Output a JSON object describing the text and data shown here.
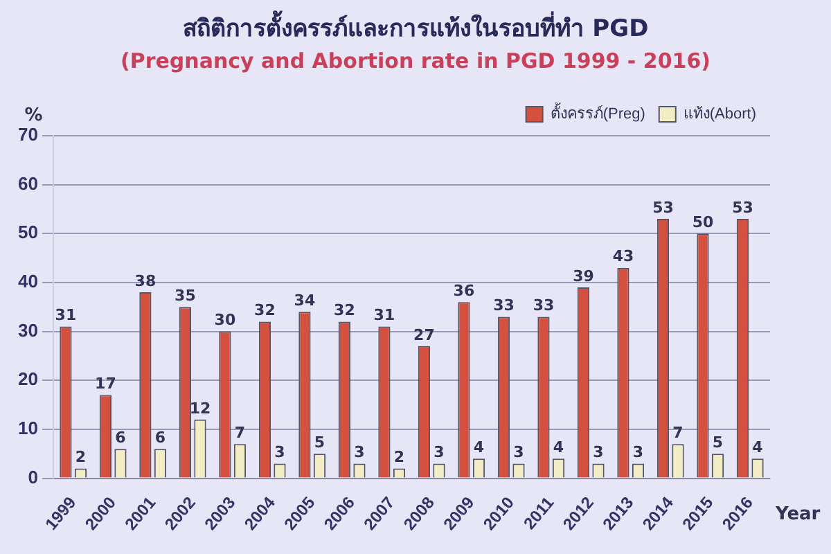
{
  "chart_data": {
    "type": "bar",
    "title": "สถิติการตั้งครรภ์และการแท้งในรอบที่ทำ PGD",
    "subtitle": "(Pregnancy and Abortion rate in PGD 1999 - 2016)",
    "xlabel": "Year",
    "ylabel": "%",
    "categories": [
      "1999",
      "2000",
      "2001",
      "2002",
      "2003",
      "2004",
      "2005",
      "2006",
      "2007",
      "2008",
      "2009",
      "2010",
      "2011",
      "2012",
      "2013",
      "2014",
      "2015",
      "2016"
    ],
    "series": [
      {
        "name": "ตั้งครรภ์(Preg)",
        "color": "#d4503f",
        "values": [
          31,
          17,
          38,
          35,
          30,
          32,
          34,
          32,
          31,
          27,
          36,
          33,
          33,
          39,
          43,
          53,
          50,
          53
        ]
      },
      {
        "name": "แท้ง(Abort)",
        "color": "#f2edc4",
        "values": [
          2,
          6,
          6,
          12,
          7,
          3,
          5,
          3,
          2,
          3,
          4,
          3,
          4,
          3,
          3,
          7,
          5,
          4
        ]
      }
    ],
    "ylim": [
      0,
      70
    ],
    "yticks": [
      0,
      10,
      20,
      30,
      40,
      50,
      60,
      70
    ],
    "grid": "y",
    "legend": "top right",
    "data_labels": true
  }
}
